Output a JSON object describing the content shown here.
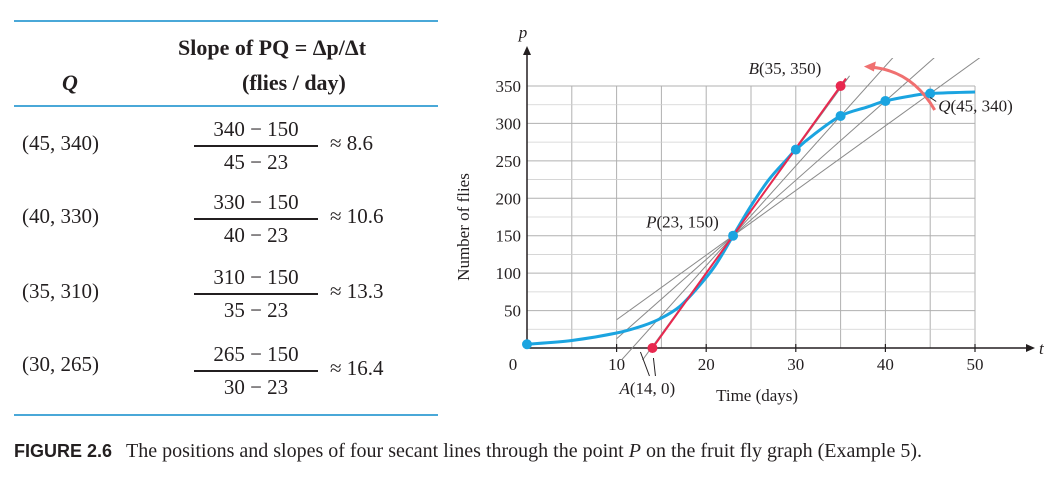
{
  "table": {
    "col_q_header": "Q",
    "col_slope_header_line1": "Slope of PQ = Δp/Δt",
    "col_slope_header_line2": "(flies / day)",
    "rows": [
      {
        "q": "(45, 340)",
        "num": "340 − 150",
        "den": "45 − 23",
        "approx": "≈ 8.6"
      },
      {
        "q": "(40, 330)",
        "num": "330 − 150",
        "den": "40 − 23",
        "approx": "≈ 10.6"
      },
      {
        "q": "(35, 310)",
        "num": "310 − 150",
        "den": "35 − 23",
        "approx": "≈ 13.3"
      },
      {
        "q": "(30, 265)",
        "num": "265 − 150",
        "den": "30 − 23",
        "approx": "≈ 16.4"
      }
    ]
  },
  "chart_data": {
    "type": "line",
    "xlabel": "Time (days)",
    "ylabel": "Number of flies",
    "x_axis_var": "t",
    "y_axis_var": "p",
    "xlim": [
      0,
      50
    ],
    "ylim": [
      0,
      350
    ],
    "x_ticks": [
      10,
      20,
      30,
      40,
      50
    ],
    "y_ticks": [
      50,
      100,
      150,
      200,
      250,
      300,
      350
    ],
    "origin_label": "0",
    "grid": true,
    "curve": {
      "color": "#1ba4e0",
      "points": [
        [
          0,
          5
        ],
        [
          5,
          10
        ],
        [
          10,
          20
        ],
        [
          13,
          30
        ],
        [
          15,
          40
        ],
        [
          17,
          55
        ],
        [
          19,
          80
        ],
        [
          21,
          110
        ],
        [
          23,
          150
        ],
        [
          25,
          190
        ],
        [
          27,
          225
        ],
        [
          29,
          252
        ],
        [
          30,
          265
        ],
        [
          32,
          285
        ],
        [
          35,
          310
        ],
        [
          38,
          322
        ],
        [
          40,
          330
        ],
        [
          43,
          337
        ],
        [
          45,
          340
        ],
        [
          50,
          342
        ]
      ]
    },
    "points": [
      {
        "label": "P(23, 150)",
        "x": 23,
        "y": 150,
        "color": "#1ba4e0"
      },
      {
        "label": "Q(45, 340)",
        "x": 45,
        "y": 340,
        "color": "#1ba4e0"
      },
      {
        "label": "",
        "x": 40,
        "y": 330,
        "color": "#1ba4e0"
      },
      {
        "label": "",
        "x": 35,
        "y": 310,
        "color": "#1ba4e0"
      },
      {
        "label": "",
        "x": 30,
        "y": 265,
        "color": "#1ba4e0"
      },
      {
        "label": "",
        "x": 0,
        "y": 5,
        "color": "#1ba4e0"
      },
      {
        "label": "B(35, 350)",
        "x": 35,
        "y": 350,
        "color": "#e8284f"
      },
      {
        "label": "A(14, 0)",
        "x": 14,
        "y": 0,
        "color": "#e8284f"
      }
    ],
    "secant_lines": [
      {
        "through": [
          [
            23,
            150
          ],
          [
            45,
            340
          ]
        ]
      },
      {
        "through": [
          [
            23,
            150
          ],
          [
            40,
            330
          ]
        ]
      },
      {
        "through": [
          [
            23,
            150
          ],
          [
            35,
            310
          ]
        ]
      },
      {
        "through": [
          [
            23,
            150
          ],
          [
            30,
            265
          ]
        ]
      }
    ],
    "tangent_line": {
      "through": [
        [
          14,
          0
        ],
        [
          35,
          350
        ]
      ],
      "color": "#e8284f"
    },
    "colors": {
      "curve": "#1ba4e0",
      "tangent": "#e8284f",
      "secant": "#8a8a8a",
      "grid": "#b0b0b0",
      "rule": "#4aa8d8"
    }
  },
  "caption": {
    "label": "FIGURE 2.6",
    "text_before": "The positions and slopes of four secant lines through the point ",
    "point": "P",
    "text_after": " on the fruit fly graph (Example 5)."
  }
}
